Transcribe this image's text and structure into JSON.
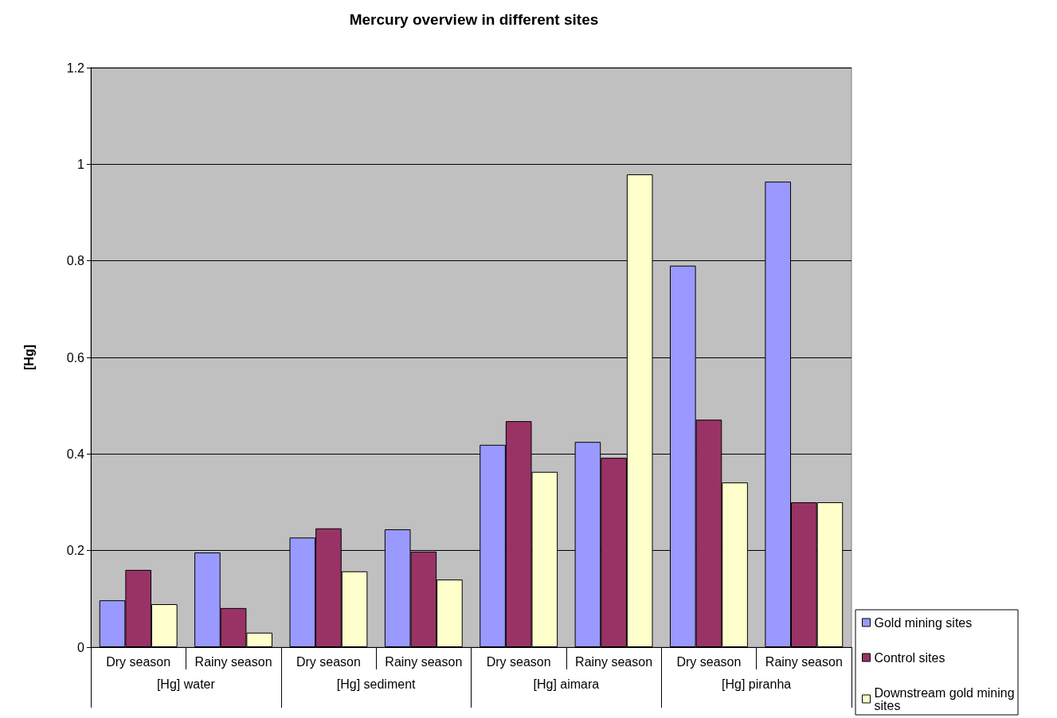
{
  "chart_data": {
    "type": "bar",
    "title": "Mercury overview in different sites",
    "ylabel": "[Hg]",
    "categories": [
      "Dry season",
      "Rainy season",
      "Dry season",
      "Rainy season",
      "Dry season",
      "Rainy season",
      "Dry season",
      "Rainy season"
    ],
    "annotations": [
      "[Hg] water",
      "[Hg] sediment",
      "[Hg] aimara",
      "[Hg] piranha"
    ],
    "series": [
      {
        "name": "Gold mining sites",
        "color": "#9999ff",
        "values": [
          0.097,
          0.196,
          0.227,
          0.244,
          0.419,
          0.425,
          0.79,
          0.964
        ]
      },
      {
        "name": "Control sites",
        "color": "#993366",
        "values": [
          0.16,
          0.081,
          0.246,
          0.198,
          0.468,
          0.392,
          0.471,
          0.3
        ]
      },
      {
        "name": "Downstream gold mining sites",
        "color": "#ffffcc",
        "values": [
          0.089,
          0.03,
          0.157,
          0.14,
          0.363,
          0.979,
          0.341,
          0.3
        ]
      }
    ],
    "ylim": [
      0,
      1.2
    ],
    "yticks": [
      0,
      0.2,
      0.4,
      0.6,
      0.8,
      1,
      1.2
    ],
    "grid": "y",
    "legend": "bottom right"
  }
}
